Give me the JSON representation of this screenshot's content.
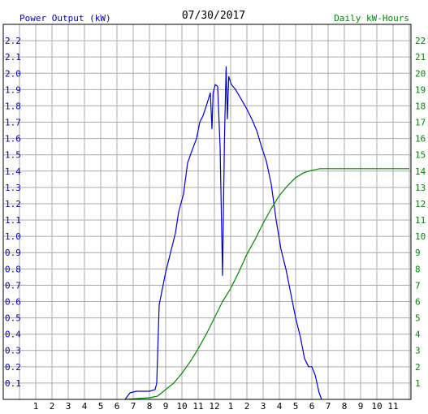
{
  "chart_data": {
    "type": "line",
    "title": "07/30/2017",
    "left_axis_label": "Power Output (kW)",
    "right_axis_label": "Daily kW-Hours",
    "x_ticks": [
      "1",
      "2",
      "3",
      "4",
      "5",
      "6",
      "7",
      "8",
      "9",
      "10",
      "11",
      "12",
      "1",
      "2",
      "3",
      "4",
      "5",
      "6",
      "7",
      "8",
      "9",
      "10",
      "11"
    ],
    "x_range_hours": [
      0,
      24
    ],
    "y_left_range": [
      0,
      2.3
    ],
    "y_left_ticks": [
      "0.1",
      "0.2",
      "0.3",
      "0.4",
      "0.5",
      "0.6",
      "0.7",
      "0.8",
      "0.9",
      "1.0",
      "1.1",
      "1.2",
      "1.3",
      "1.4",
      "1.5",
      "1.6",
      "1.7",
      "1.8",
      "1.9",
      "2.0",
      "2.1",
      "2.2"
    ],
    "y_right_range": [
      0,
      23
    ],
    "y_right_ticks": [
      "1",
      "2",
      "3",
      "4",
      "5",
      "6",
      "7",
      "8",
      "9",
      "10",
      "11",
      "12",
      "13",
      "14",
      "15",
      "16",
      "17",
      "18",
      "19",
      "20",
      "21",
      "22"
    ],
    "grid": true,
    "colors": {
      "power": "#0000cc",
      "energy": "#008800",
      "left_labels": "#0000aa",
      "right_labels": "#008800",
      "grid": "#aaaaaa"
    },
    "series": [
      {
        "axis": "left",
        "color": "#0000cc",
        "points": [
          [
            6.5,
            0.0
          ],
          [
            6.8,
            0.04
          ],
          [
            7.2,
            0.05
          ],
          [
            7.6,
            0.05
          ],
          [
            8.0,
            0.05
          ],
          [
            8.35,
            0.06
          ],
          [
            8.45,
            0.1
          ],
          [
            8.6,
            0.58
          ],
          [
            8.8,
            0.68
          ],
          [
            9.0,
            0.78
          ],
          [
            9.3,
            0.9
          ],
          [
            9.6,
            1.02
          ],
          [
            9.8,
            1.15
          ],
          [
            10.1,
            1.26
          ],
          [
            10.35,
            1.45
          ],
          [
            10.6,
            1.52
          ],
          [
            10.9,
            1.6
          ],
          [
            11.1,
            1.7
          ],
          [
            11.3,
            1.74
          ],
          [
            11.5,
            1.8
          ],
          [
            11.75,
            1.88
          ],
          [
            11.85,
            1.66
          ],
          [
            11.92,
            1.88
          ],
          [
            12.05,
            1.93
          ],
          [
            12.2,
            1.92
          ],
          [
            12.35,
            1.55
          ],
          [
            12.5,
            0.76
          ],
          [
            12.62,
            1.6
          ],
          [
            12.72,
            2.04
          ],
          [
            12.8,
            1.72
          ],
          [
            12.88,
            1.98
          ],
          [
            13.05,
            1.93
          ],
          [
            13.3,
            1.9
          ],
          [
            13.6,
            1.85
          ],
          [
            14.0,
            1.78
          ],
          [
            14.3,
            1.72
          ],
          [
            14.6,
            1.65
          ],
          [
            14.9,
            1.55
          ],
          [
            15.2,
            1.46
          ],
          [
            15.5,
            1.32
          ],
          [
            15.8,
            1.1
          ],
          [
            16.1,
            0.92
          ],
          [
            16.4,
            0.8
          ],
          [
            16.7,
            0.65
          ],
          [
            17.0,
            0.5
          ],
          [
            17.3,
            0.38
          ],
          [
            17.55,
            0.25
          ],
          [
            17.8,
            0.2
          ],
          [
            18.0,
            0.2
          ],
          [
            18.2,
            0.15
          ],
          [
            18.45,
            0.04
          ],
          [
            18.6,
            0.0
          ]
        ]
      },
      {
        "axis": "right",
        "color": "#008800",
        "points": [
          [
            6.5,
            0.0
          ],
          [
            8.0,
            0.1
          ],
          [
            8.5,
            0.2
          ],
          [
            9.0,
            0.6
          ],
          [
            9.5,
            1.0
          ],
          [
            10.0,
            1.6
          ],
          [
            10.5,
            2.3
          ],
          [
            11.0,
            3.1
          ],
          [
            11.5,
            4.0
          ],
          [
            12.0,
            5.0
          ],
          [
            12.5,
            6.0
          ],
          [
            13.0,
            6.8
          ],
          [
            13.5,
            7.8
          ],
          [
            14.0,
            8.9
          ],
          [
            14.5,
            9.8
          ],
          [
            15.0,
            10.8
          ],
          [
            15.5,
            11.7
          ],
          [
            16.0,
            12.5
          ],
          [
            16.5,
            13.1
          ],
          [
            17.0,
            13.6
          ],
          [
            17.5,
            13.9
          ],
          [
            18.0,
            14.05
          ],
          [
            18.5,
            14.15
          ],
          [
            19.0,
            14.15
          ],
          [
            20.0,
            14.15
          ],
          [
            24.0,
            14.15
          ]
        ]
      }
    ]
  }
}
